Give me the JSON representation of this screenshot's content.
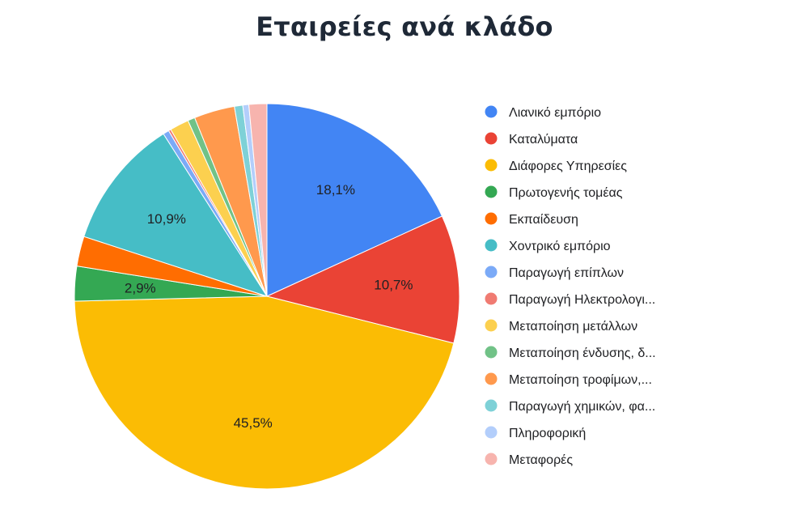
{
  "chart_data": {
    "type": "pie",
    "title": "Εταιρείες ανά κλάδο",
    "legend_position": "right",
    "slices": [
      {
        "name": "Λιανικό εμπόριο",
        "value": 18.1,
        "label": "18,1%",
        "color": "#4285F4"
      },
      {
        "name": "Καταλύματα",
        "value": 10.7,
        "label": "10,7%",
        "color": "#EA4335"
      },
      {
        "name": "Διάφορες Υπηρεσίες",
        "value": 45.5,
        "label": "45,5%",
        "color": "#FBBC04"
      },
      {
        "name": "Πρωτογενής τομέας",
        "value": 2.9,
        "label": "2,9%",
        "color": "#34A853"
      },
      {
        "name": "Εκπαίδευση",
        "value": 2.5,
        "label": "",
        "color": "#FF6D01"
      },
      {
        "name": "Χοντρικό εμπόριο",
        "value": 10.9,
        "label": "10,9%",
        "color": "#46BDC6"
      },
      {
        "name": "Παραγωγή επίπλων",
        "value": 0.5,
        "label": "",
        "color": "#7BAAF7"
      },
      {
        "name": "Παραγωγή Ηλεκτρολογι...",
        "value": 0.2,
        "label": "",
        "color": "#F07B72"
      },
      {
        "name": "Μεταποίηση μετάλλων",
        "value": 1.6,
        "label": "",
        "color": "#FCD04F"
      },
      {
        "name": "Μεταποίηση ένδυσης, δ...",
        "value": 0.6,
        "label": "",
        "color": "#71C287"
      },
      {
        "name": "Μεταποίηση τροφίμων,...",
        "value": 3.4,
        "label": "",
        "color": "#FF994D"
      },
      {
        "name": "Παραγωγή χημικών, φα...",
        "value": 0.7,
        "label": "",
        "color": "#7ED1D7"
      },
      {
        "name": "Πληροφορική",
        "value": 0.5,
        "label": "",
        "color": "#B3CEFB"
      },
      {
        "name": "Μεταφορές",
        "value": 1.5,
        "label": "",
        "color": "#F7B4AE"
      }
    ]
  }
}
